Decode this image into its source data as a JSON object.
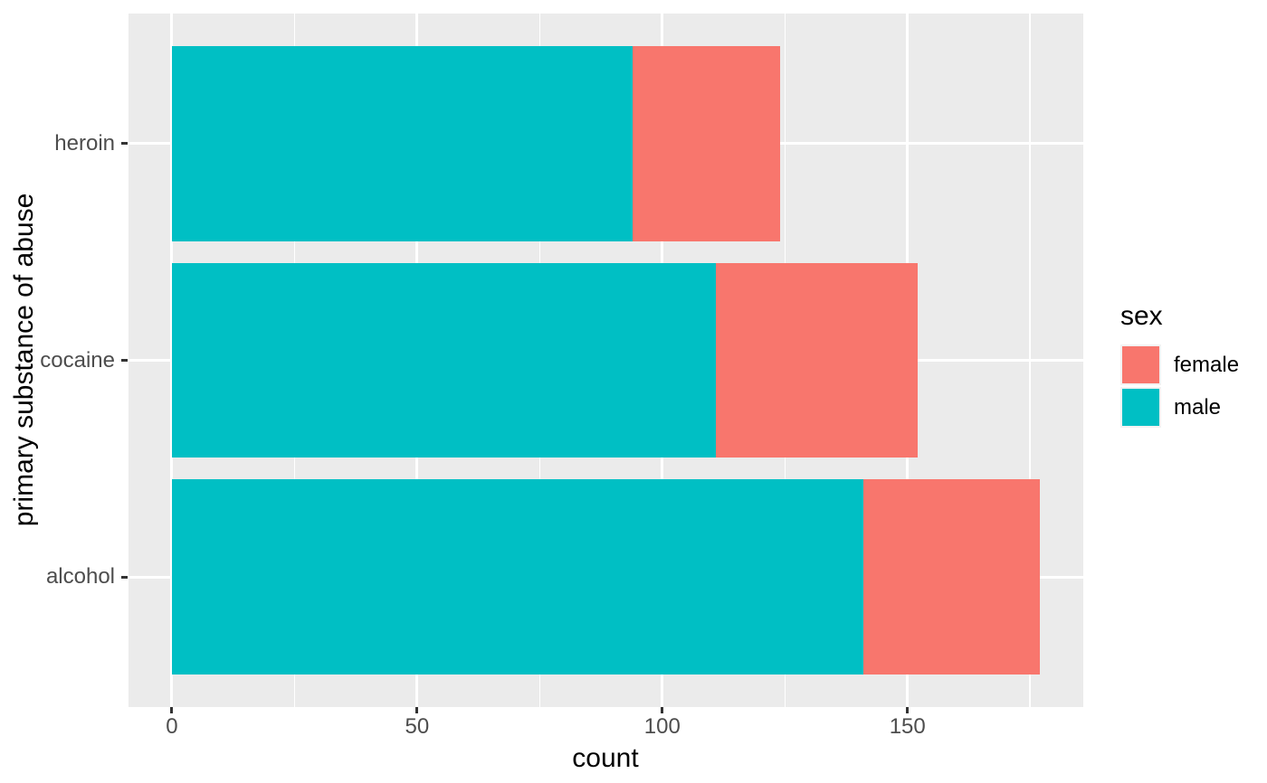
{
  "figure": {
    "background": "#FFFFFF",
    "panel_background": "#EBEBEB",
    "gridline_color": "#FFFFFF",
    "tick_mark_color": "#333333",
    "tick_label_color": "#4D4D4D",
    "title_color": "#000000"
  },
  "chart_data": {
    "type": "bar",
    "orientation": "horizontal",
    "stacked": true,
    "title": "",
    "xlabel": "count",
    "ylabel": "primary substance of abuse",
    "categories": [
      "heroin",
      "cocaine",
      "alcohol"
    ],
    "categories_order": "top-to-bottom",
    "series": [
      {
        "name": "male",
        "color": "#00BFC4",
        "values": [
          94,
          111,
          141
        ]
      },
      {
        "name": "female",
        "color": "#F8766D",
        "values": [
          30,
          41,
          36
        ]
      }
    ],
    "stack_from_zero": "male",
    "totals": [
      124,
      152,
      177
    ],
    "x_ticks": [
      0,
      50,
      100,
      150
    ],
    "x_minor_ticks": [
      25,
      75,
      125,
      175
    ],
    "xlim": [
      0,
      186
    ],
    "grid": true,
    "legend": {
      "title": "sex",
      "position": "right",
      "entries": [
        {
          "label": "female",
          "color": "#F8766D"
        },
        {
          "label": "male",
          "color": "#00BFC4"
        }
      ]
    }
  }
}
